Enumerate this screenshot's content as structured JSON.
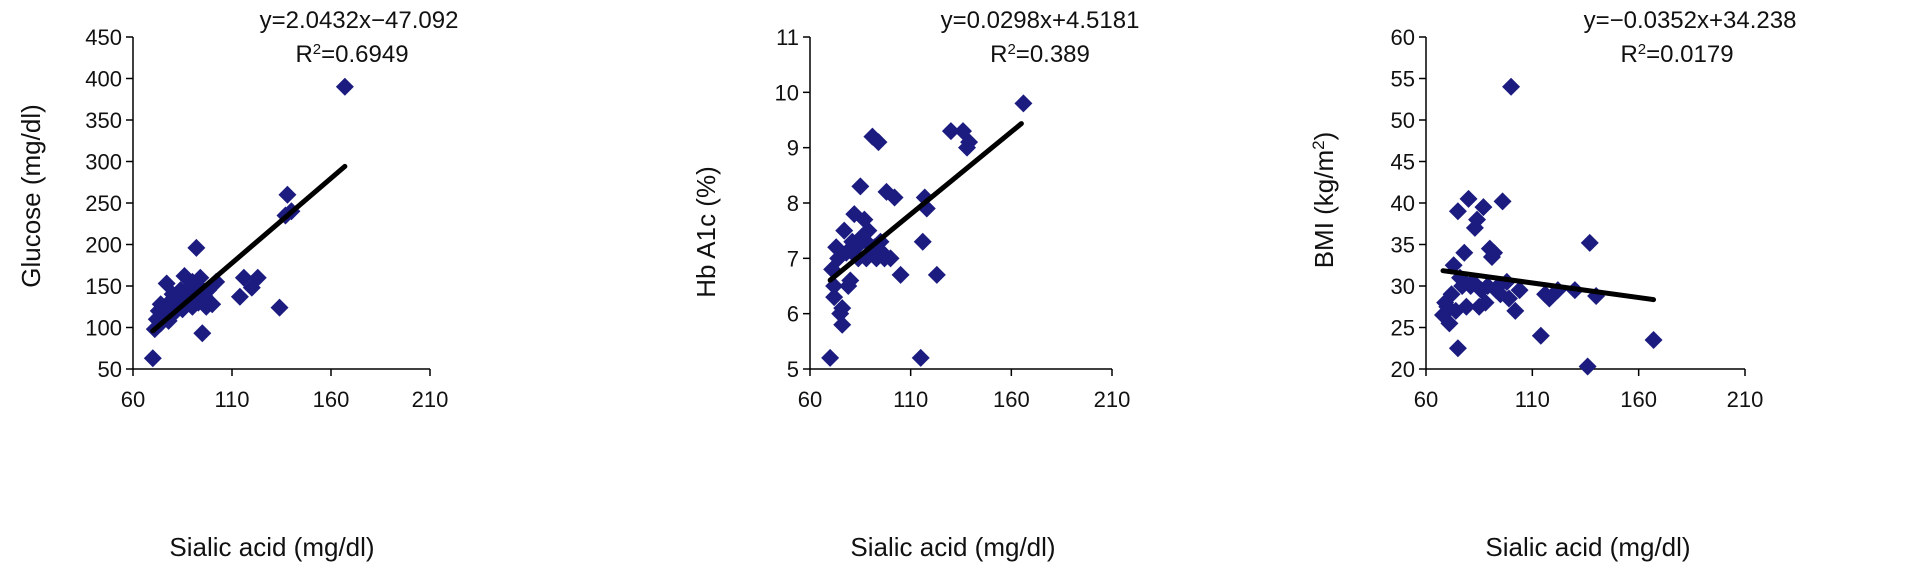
{
  "chart_data": [
    {
      "type": "scatter",
      "xlabel": "Sialic acid (mg/dl)",
      "ylabel": "Glucose (mg/dl)",
      "xlim": [
        60,
        210
      ],
      "ylim": [
        50,
        450
      ],
      "xticks": [
        60,
        110,
        160,
        210
      ],
      "yticks": [
        50,
        100,
        150,
        200,
        250,
        300,
        350,
        400,
        450
      ],
      "equation": "y=2.0432x−47.092",
      "r2_label": "R",
      "r2_value": "=0.6949",
      "trendline": {
        "slope": 2.0432,
        "intercept": -47.092,
        "x_range": [
          70,
          167
        ]
      },
      "marker_color": "#1c1c80",
      "x": [
        70,
        71,
        72,
        73,
        74,
        74,
        75,
        76,
        77,
        78,
        78,
        79,
        80,
        81,
        82,
        83,
        84,
        85,
        86,
        87,
        88,
        89,
        90,
        90,
        91,
        92,
        93,
        93,
        94,
        95,
        96,
        97,
        98,
        100,
        102,
        114,
        116,
        120,
        123,
        134,
        137,
        138,
        140,
        167
      ],
      "y": [
        63,
        98,
        110,
        120,
        105,
        128,
        118,
        112,
        153,
        125,
        108,
        132,
        140,
        118,
        135,
        127,
        145,
        122,
        162,
        130,
        148,
        138,
        125,
        155,
        140,
        196,
        150,
        130,
        160,
        93,
        138,
        125,
        145,
        128,
        155,
        137,
        160,
        148,
        160,
        124,
        235,
        260,
        240,
        390
      ]
    },
    {
      "type": "scatter",
      "xlabel": "Sialic acid (mg/dl)",
      "ylabel": "Hb A1c (%)",
      "xlim": [
        60,
        210
      ],
      "ylim": [
        5,
        11
      ],
      "xticks": [
        60,
        110,
        160,
        210
      ],
      "yticks": [
        5,
        6,
        7,
        8,
        9,
        10,
        11
      ],
      "equation": "y=0.0298x+4.5181",
      "r2_label": "R",
      "r2_value": "=0.389",
      "trendline": {
        "slope": 0.0298,
        "intercept": 4.5181,
        "x_range": [
          70,
          165
        ]
      },
      "marker_color": "#1c1c80",
      "x": [
        70,
        71,
        72,
        72,
        73,
        74,
        75,
        76,
        76,
        77,
        78,
        79,
        80,
        81,
        82,
        83,
        84,
        85,
        86,
        87,
        88,
        88,
        89,
        90,
        91,
        92,
        93,
        94,
        95,
        96,
        97,
        98,
        100,
        102,
        105,
        115,
        116,
        117,
        118,
        123,
        130,
        136,
        138,
        139,
        166
      ],
      "y": [
        5.2,
        6.8,
        6.5,
        6.3,
        7.2,
        7.0,
        6.0,
        5.8,
        6.1,
        7.5,
        7.1,
        6.5,
        6.6,
        7.3,
        7.8,
        7.2,
        7.0,
        8.3,
        7.4,
        7.7,
        7.3,
        7.0,
        7.5,
        7.1,
        9.2,
        7.2,
        7.0,
        9.1,
        7.3,
        7.1,
        7.0,
        8.2,
        7.0,
        8.1,
        6.7,
        5.2,
        7.3,
        8.1,
        7.9,
        6.7,
        9.3,
        9.3,
        9.0,
        9.1,
        9.8
      ]
    },
    {
      "type": "scatter",
      "xlabel": "Sialic acid (mg/dl)",
      "ylabel": "BMI (kg/m",
      "ylabel_sup": "2",
      "ylabel_end": ")",
      "xlim": [
        60,
        210
      ],
      "ylim": [
        20,
        60
      ],
      "xticks": [
        60,
        110,
        160,
        210
      ],
      "yticks": [
        20,
        25,
        30,
        35,
        40,
        45,
        50,
        55,
        60
      ],
      "equation": "y=−0.0352x+34.238",
      "r2_label": "R",
      "r2_value": "=0.0179",
      "trendline": {
        "slope": -0.0352,
        "intercept": 34.238,
        "x_range": [
          68,
          167
        ]
      },
      "marker_color": "#1c1c80",
      "x": [
        68,
        69,
        70,
        71,
        72,
        73,
        74,
        75,
        75,
        76,
        77,
        78,
        79,
        80,
        81,
        82,
        83,
        84,
        85,
        86,
        87,
        88,
        89,
        90,
        91,
        92,
        93,
        94,
        95,
        96,
        98,
        99,
        100,
        102,
        104,
        114,
        116,
        118,
        122,
        130,
        136,
        137,
        140,
        167
      ],
      "y": [
        26.5,
        28,
        27.5,
        25.5,
        29,
        32.5,
        27,
        22.5,
        39,
        31,
        30,
        34,
        27.5,
        40.5,
        30,
        30.5,
        37,
        38,
        27.5,
        29.5,
        39.5,
        28,
        30,
        34.5,
        33.5,
        34,
        29.5,
        30,
        29,
        40.2,
        30.5,
        28.5,
        54,
        27,
        29.5,
        24,
        29,
        28.5,
        29.5,
        29.5,
        20.3,
        35.2,
        28.8,
        23.5
      ]
    }
  ]
}
